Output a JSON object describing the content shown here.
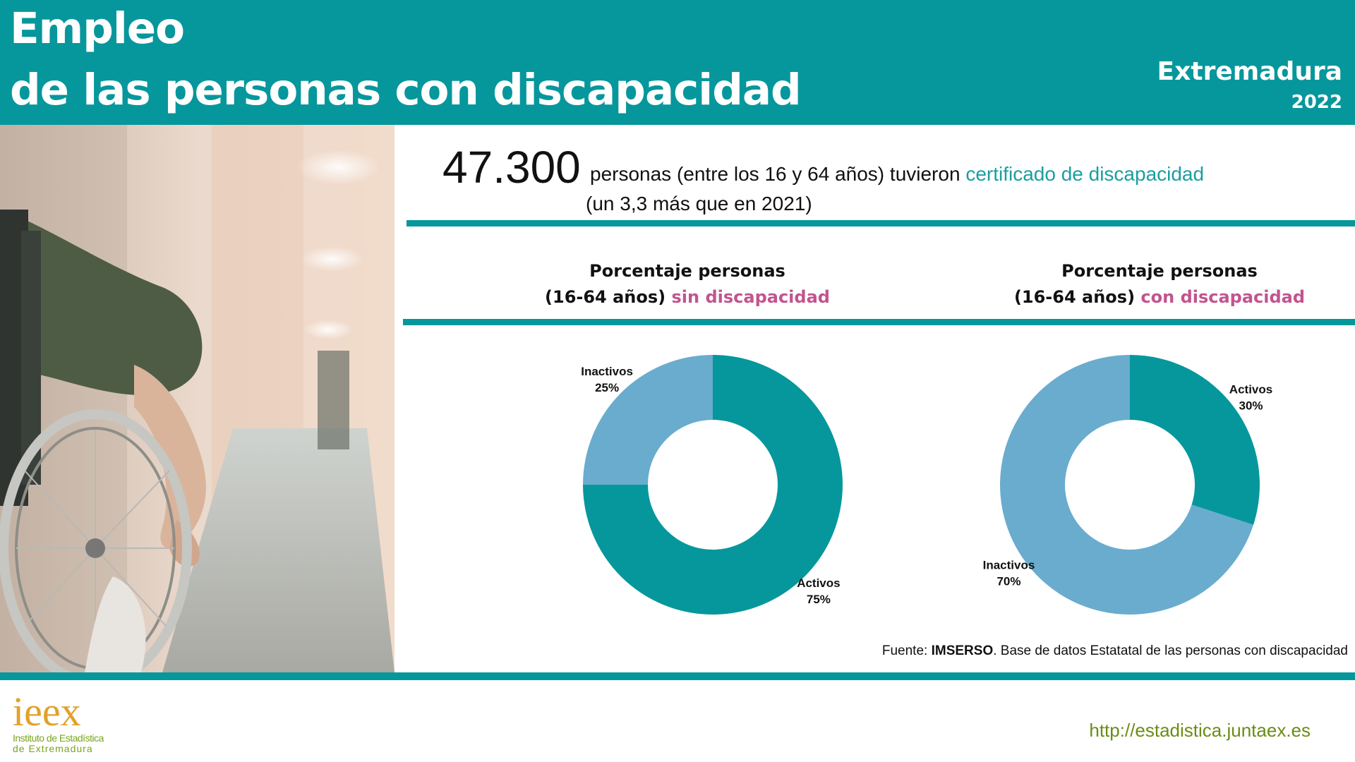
{
  "header": {
    "title_line1": "Empleo",
    "title_line2": "de las personas con discapacidad",
    "region": "Extremadura",
    "year": "2022",
    "background_color": "#06979c"
  },
  "highlight": {
    "number": "47.300",
    "text": "personas (entre los 16 y 64 años) tuvieron",
    "accent_text": "certificado de discapacidad",
    "subtext": "(un 3,3 más que en 2021)"
  },
  "chart_titles": [
    {
      "line1": "Porcentaje personas",
      "line2_prefix": "(16-64 años)",
      "line2_accent": "sin discapacidad"
    },
    {
      "line1": "Porcentaje personas",
      "line2_prefix": "(16-64 años)",
      "line2_accent": "con discapacidad"
    }
  ],
  "chart_data": [
    {
      "type": "pie",
      "donut": true,
      "labels": [
        "Activos",
        "Inactivos"
      ],
      "values": [
        75,
        25
      ],
      "value_labels": [
        "75%",
        "25%"
      ],
      "colors": [
        "#06979c",
        "#69acce"
      ]
    },
    {
      "type": "pie",
      "donut": true,
      "labels": [
        "Activos",
        "Inactivos"
      ],
      "values": [
        30,
        70
      ],
      "value_labels": [
        "30%",
        "70%"
      ],
      "colors": [
        "#06979c",
        "#69acce"
      ]
    }
  ],
  "source": {
    "prefix": "Fuente: ",
    "org": "IMSERSO",
    "rest": ". Base de datos Estatatal de las personas con  discapacidad"
  },
  "footer": {
    "logo_word": "ieex",
    "logo_line1": "Instituto de Estadística",
    "logo_line2": "de Extremadura",
    "url": "http://estadistica.juntaex.es"
  },
  "photo": {
    "icon": "wheelchair-photo"
  }
}
